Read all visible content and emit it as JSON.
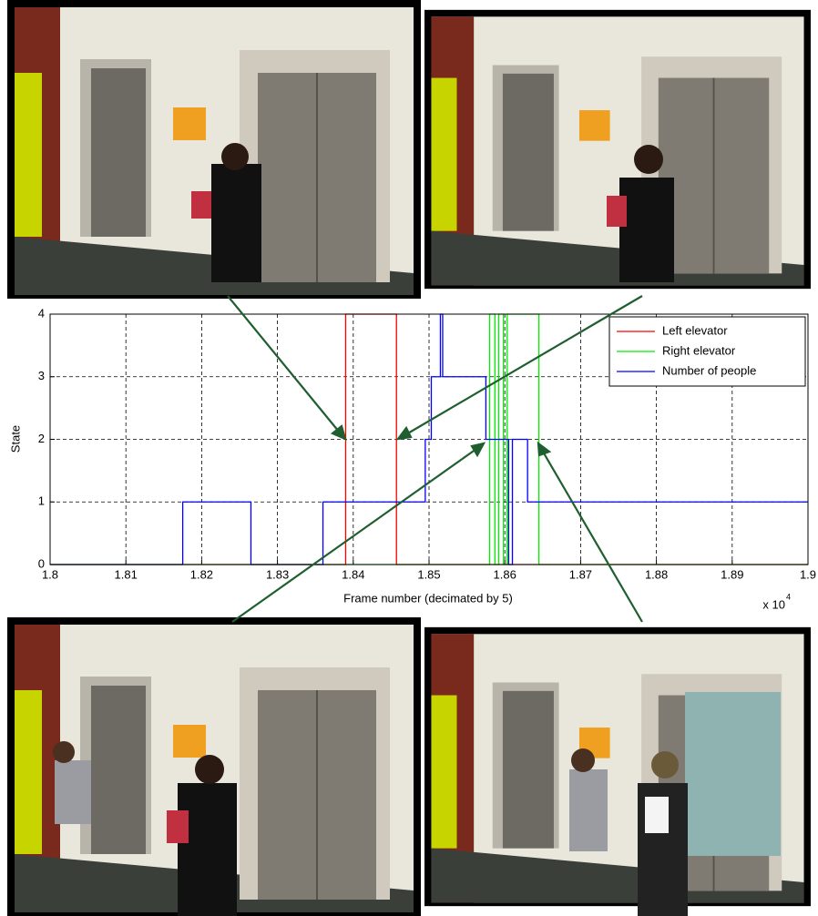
{
  "chart_data": {
    "type": "line",
    "x_label": "Frame number (decimated by 5)",
    "y_label": "State",
    "x_multiplier": "x 10",
    "x_multiplier_exp": "4",
    "xlim": [
      1.8,
      1.9
    ],
    "xticks": [
      1.8,
      1.81,
      1.82,
      1.83,
      1.84,
      1.85,
      1.86,
      1.87,
      1.88,
      1.89,
      1.9
    ],
    "ylim": [
      0,
      4
    ],
    "yticks": [
      0,
      1,
      2,
      3,
      4
    ],
    "grid": true,
    "legend": "upper-right",
    "series": [
      {
        "name": "Left elevator",
        "color": "#ff0000",
        "x": [
          1.8,
          1.839,
          1.839,
          1.8457,
          1.8457,
          1.9
        ],
        "values": [
          0,
          0,
          4,
          4,
          0,
          0
        ]
      },
      {
        "name": "Right elevator",
        "color": "#00ee00",
        "x": [
          1.8,
          1.858,
          1.858,
          1.8587,
          1.8587,
          1.8592,
          1.8592,
          1.8598,
          1.8598,
          1.8603,
          1.8603,
          1.8645,
          1.8645,
          1.9
        ],
        "values": [
          0,
          0,
          4,
          4,
          0,
          0,
          4,
          4,
          0,
          0,
          4,
          4,
          0,
          0
        ]
      },
      {
        "name": "Number of people",
        "color": "#0000ff",
        "x": [
          1.8,
          1.8175,
          1.8175,
          1.8265,
          1.8265,
          1.836,
          1.836,
          1.8495,
          1.8495,
          1.8503,
          1.8503,
          1.8515,
          1.8515,
          1.8518,
          1.8518,
          1.8575,
          1.8575,
          1.8605,
          1.8605,
          1.861,
          1.861,
          1.863,
          1.863,
          1.9
        ],
        "values": [
          0,
          0,
          1,
          1,
          0,
          0,
          1,
          1,
          2,
          2,
          3,
          3,
          4,
          4,
          3,
          3,
          2,
          2,
          0,
          0,
          2,
          2,
          1,
          1
        ]
      }
    ]
  }
}
